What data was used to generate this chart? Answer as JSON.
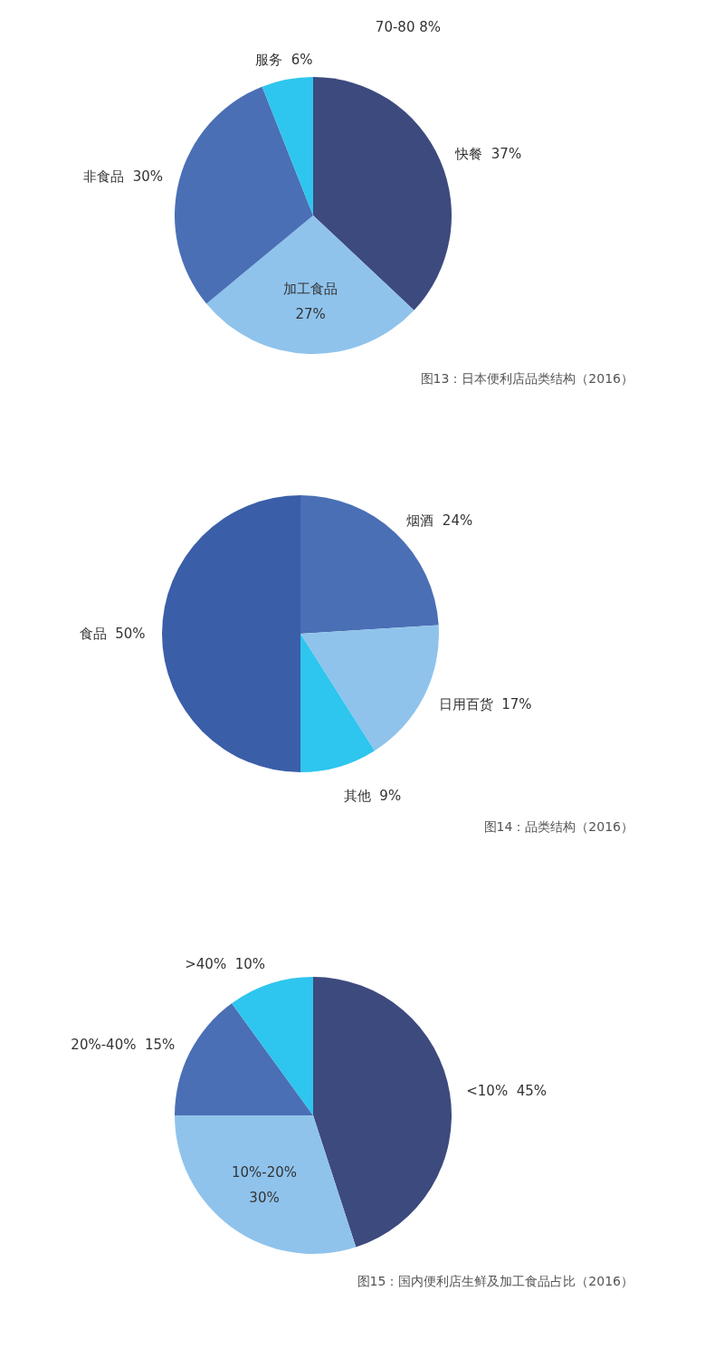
{
  "chart_data": [
    {
      "type": "pie",
      "title": "图13：日本便利店品类结构（2016）",
      "categories": [
        "快餐",
        "加工食品",
        "非食品",
        "服务"
      ],
      "values": [
        37,
        27,
        30,
        6
      ],
      "value_labels": [
        "37%",
        "27%",
        "30%",
        "6%"
      ],
      "colors": [
        "#3d4a7e",
        "#8fc3ec",
        "#4a6fb5",
        "#2ec5ee"
      ],
      "annotations": [
        "70-80 8%"
      ]
    },
    {
      "type": "pie",
      "title": "图14：品类结构（2016）",
      "categories": [
        "烟酒",
        "日用百货",
        "其他",
        "食品"
      ],
      "values": [
        24,
        17,
        9,
        50
      ],
      "value_labels": [
        "24%",
        "17%",
        "9%",
        "50%"
      ],
      "colors": [
        "#4a6fb5",
        "#8fc3ec",
        "#2ec5ee",
        "#3a5ea8"
      ]
    },
    {
      "type": "pie",
      "title": "图15：国内便利店生鲜及加工食品占比（2016）",
      "categories": [
        "<10%",
        "10%-20%",
        "20%-40%",
        ">40%"
      ],
      "values": [
        45,
        30,
        15,
        10
      ],
      "value_labels": [
        "45%",
        "30%",
        "15%",
        "10%"
      ],
      "colors": [
        "#3d4a7e",
        "#8fc3ec",
        "#4a6fb5",
        "#2ec5ee"
      ]
    }
  ]
}
